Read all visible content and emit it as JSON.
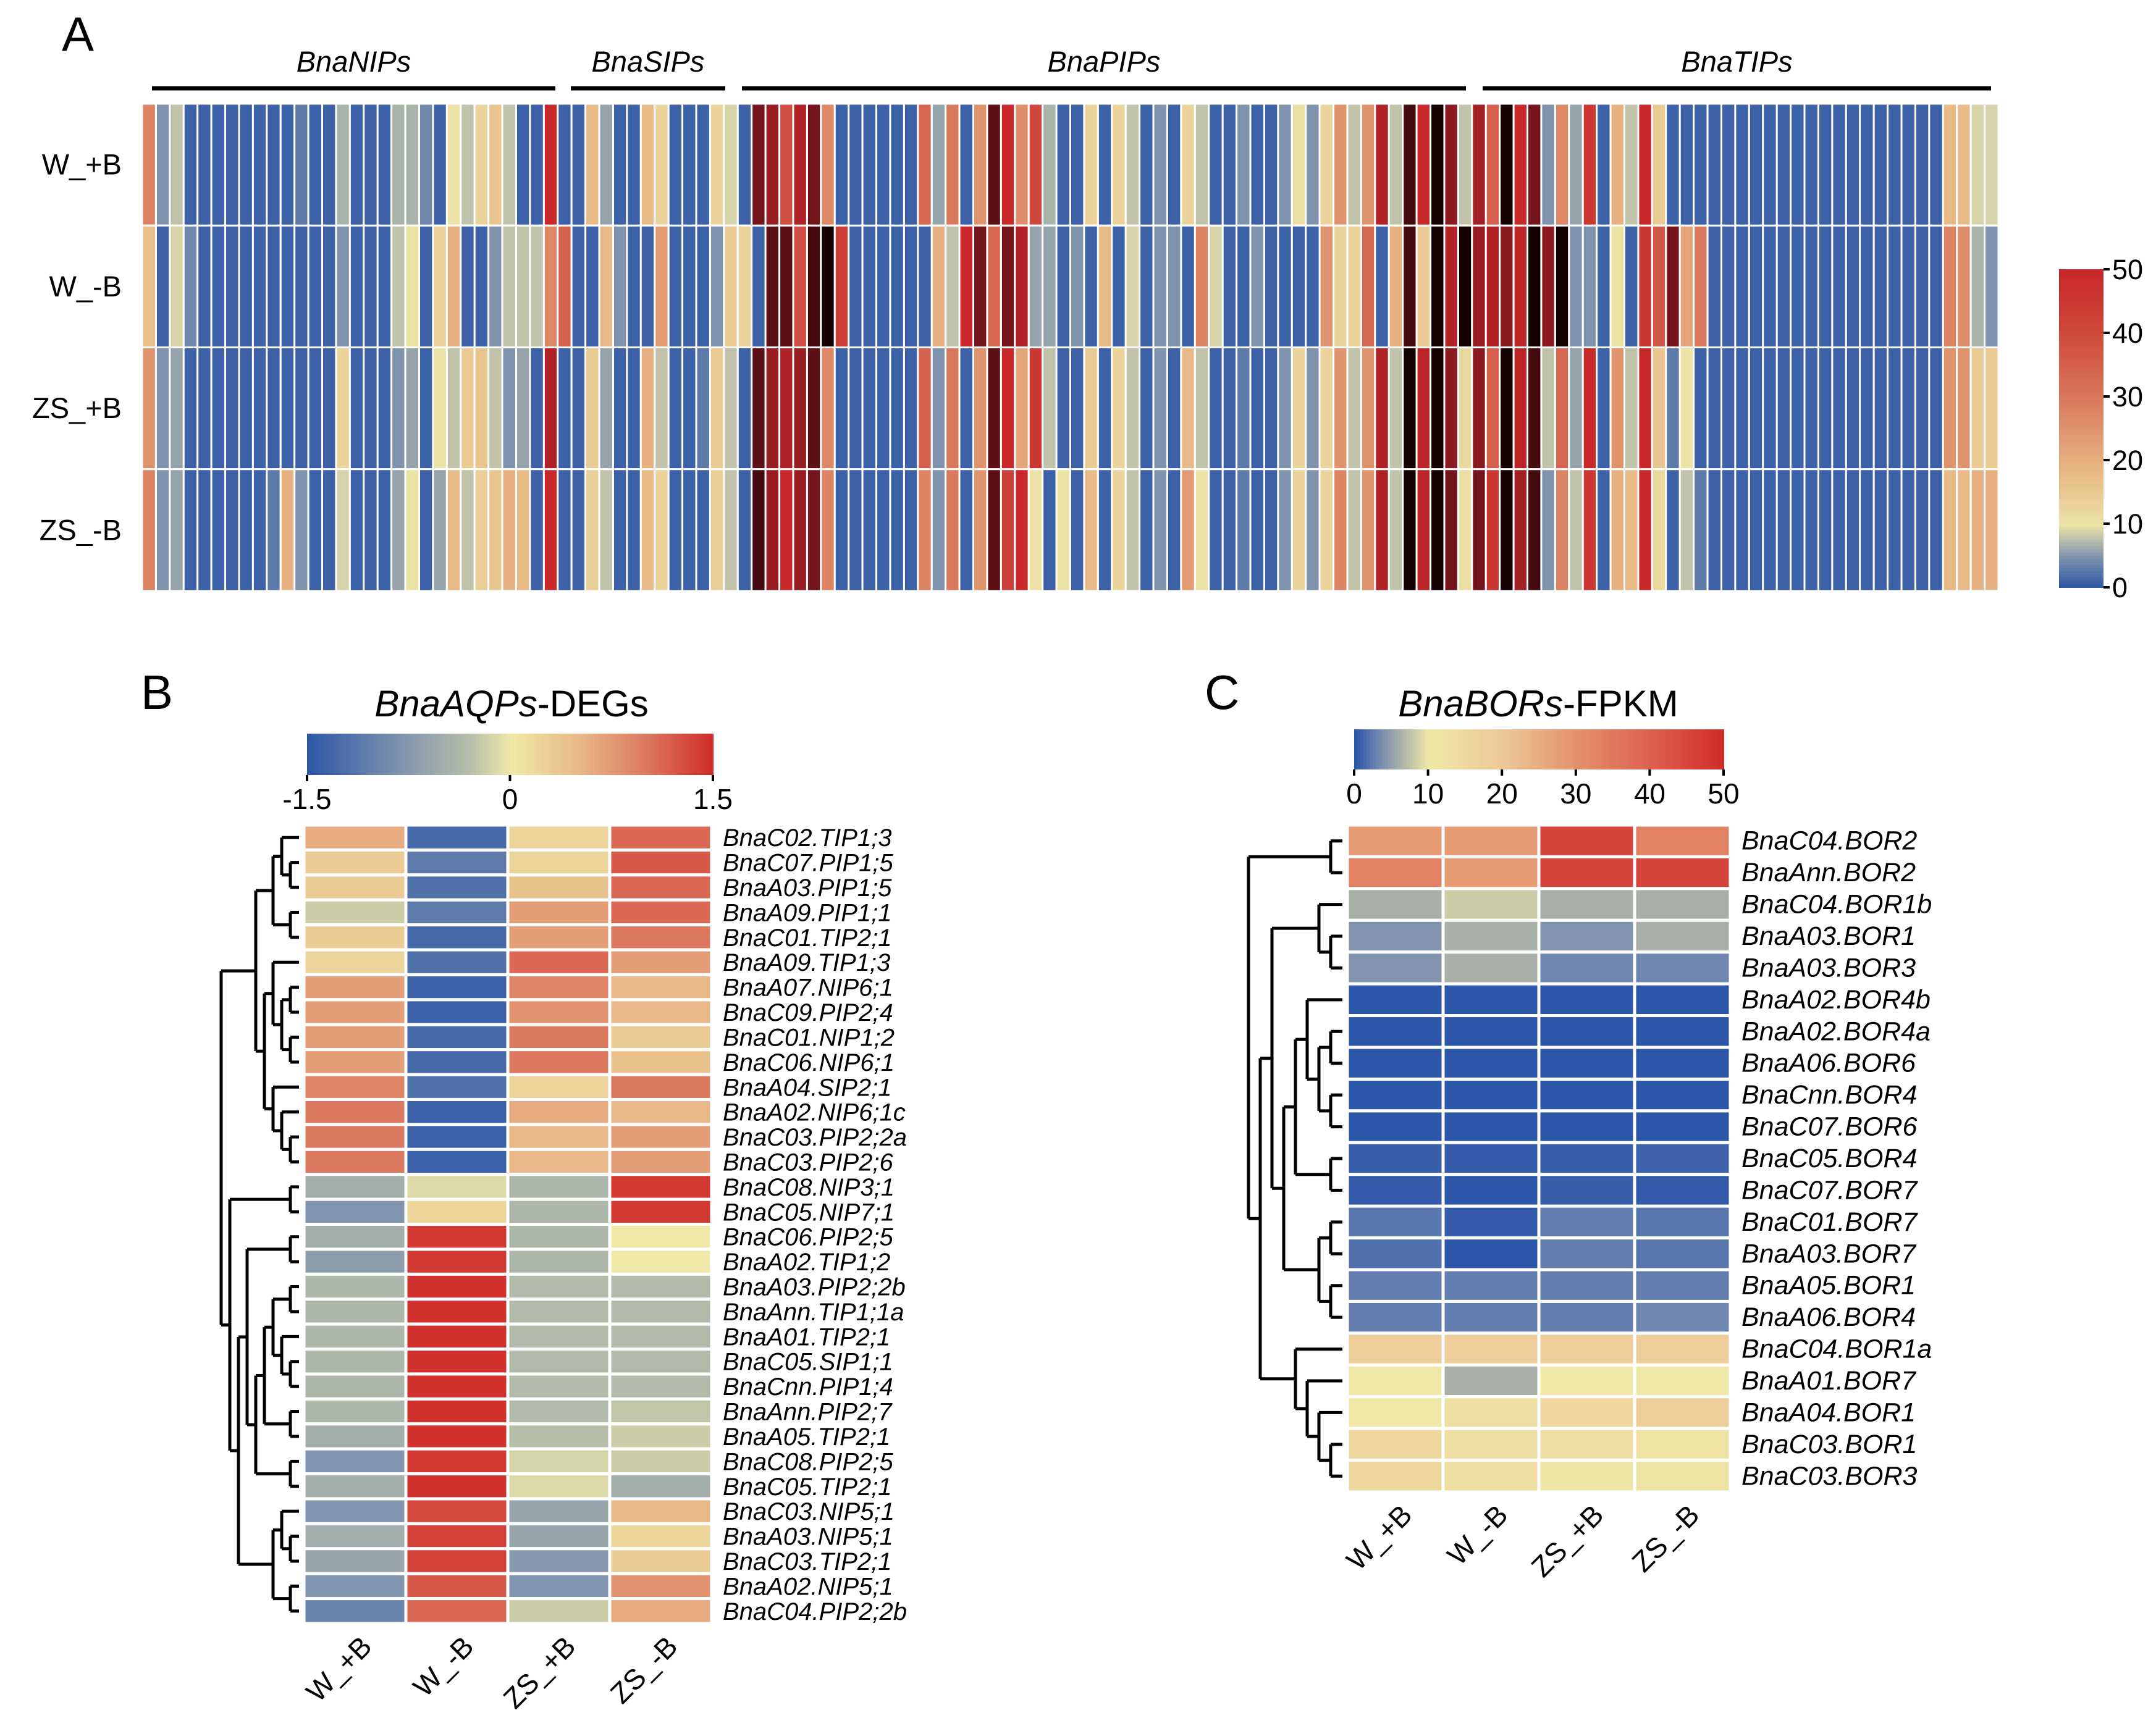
{
  "chart_data": [
    {
      "type": "heatmap",
      "panel": "A",
      "rows": [
        "W_+B",
        "W_-B",
        "ZS_+B",
        "ZS_-B"
      ],
      "groups": [
        "BnaNIPs",
        "BnaSIPs",
        "BnaPIPs",
        "BnaTIPs"
      ],
      "colorbar": {
        "ticks": [
          "50",
          "40",
          "30",
          "20",
          "10",
          "0"
        ],
        "range": [
          0,
          50
        ]
      },
      "values": [
        [
          28,
          5,
          8,
          1,
          1,
          1,
          1,
          1,
          1,
          1,
          1,
          3,
          1,
          1,
          7,
          1,
          1,
          1,
          7,
          7,
          4,
          1,
          10,
          8,
          13,
          16,
          8,
          1,
          1,
          40,
          1,
          1,
          18,
          6,
          1,
          1,
          18,
          13,
          1,
          1,
          1,
          13,
          9,
          1,
          46,
          44,
          35,
          42,
          46,
          27,
          1,
          1,
          1,
          1,
          1,
          1,
          32,
          6,
          30,
          1,
          25,
          47,
          40,
          26,
          36,
          7,
          1,
          1,
          13,
          1,
          13,
          8,
          1,
          5,
          1,
          13,
          8,
          1,
          1,
          5,
          1,
          1,
          5,
          11,
          5,
          13,
          25,
          8,
          25,
          42,
          8,
          48,
          40,
          50,
          45,
          8,
          43,
          33,
          50,
          40,
          46,
          5,
          27,
          6,
          38,
          1,
          20,
          8,
          40,
          15,
          1,
          1,
          1,
          1,
          1,
          1,
          1,
          1,
          1,
          1,
          1,
          1,
          1,
          1,
          1,
          1,
          1,
          1,
          1,
          1,
          18,
          18,
          9,
          9
        ],
        [
          17,
          1,
          9,
          4,
          1,
          1,
          1,
          1,
          1,
          1,
          1,
          1,
          1,
          1,
          5,
          1,
          1,
          1,
          8,
          10,
          1,
          13,
          20,
          1,
          1,
          5,
          8,
          8,
          8,
          27,
          33,
          1,
          1,
          18,
          5,
          1,
          1,
          24,
          1,
          1,
          1,
          5,
          15,
          13,
          1,
          47,
          47,
          35,
          48,
          50,
          37,
          1,
          1,
          1,
          1,
          1,
          1,
          20,
          8,
          40,
          46,
          32,
          46,
          42,
          6,
          6,
          1,
          5,
          1,
          18,
          1,
          9,
          1,
          5,
          5,
          1,
          28,
          9,
          1,
          1,
          5,
          1,
          1,
          1,
          1,
          25,
          13,
          13,
          32,
          1,
          20,
          48,
          15,
          50,
          42,
          50,
          44,
          42,
          45,
          41,
          50,
          45,
          50,
          5,
          5,
          1,
          10,
          1,
          38,
          34,
          46,
          22,
          30,
          1,
          1,
          1,
          1,
          1,
          1,
          1,
          1,
          1,
          1,
          1,
          1,
          1,
          1,
          1,
          1,
          1,
          28,
          26,
          7,
          5
        ],
        [
          25,
          5,
          6,
          1,
          1,
          1,
          1,
          1,
          1,
          1,
          1,
          1,
          1,
          1,
          13,
          1,
          1,
          1,
          5,
          6,
          1,
          10,
          8,
          15,
          16,
          8,
          5,
          6,
          1,
          42,
          1,
          1,
          15,
          6,
          1,
          1,
          20,
          8,
          1,
          1,
          3,
          15,
          8,
          1,
          47,
          44,
          42,
          44,
          47,
          27,
          1,
          1,
          1,
          1,
          1,
          1,
          33,
          5,
          30,
          1,
          25,
          47,
          40,
          22,
          38,
          8,
          1,
          1,
          15,
          1,
          13,
          8,
          1,
          5,
          1,
          18,
          8,
          1,
          1,
          3,
          1,
          1,
          5,
          13,
          5,
          13,
          25,
          8,
          25,
          42,
          8,
          50,
          41,
          50,
          45,
          12,
          45,
          33,
          50,
          41,
          48,
          8,
          32,
          6,
          40,
          1,
          25,
          8,
          40,
          16,
          3,
          10,
          1,
          1,
          1,
          1,
          1,
          1,
          1,
          1,
          1,
          1,
          1,
          1,
          1,
          1,
          1,
          1,
          1,
          1,
          25,
          25,
          15,
          15
        ],
        [
          28,
          5,
          6,
          1,
          1,
          1,
          1,
          1,
          1,
          3,
          20,
          5,
          1,
          1,
          9,
          1,
          1,
          1,
          6,
          10,
          1,
          6,
          18,
          8,
          14,
          16,
          20,
          18,
          1,
          40,
          1,
          1,
          14,
          8,
          1,
          1,
          18,
          13,
          1,
          1,
          1,
          14,
          8,
          1,
          48,
          44,
          40,
          44,
          46,
          28,
          1,
          1,
          1,
          1,
          1,
          1,
          28,
          5,
          30,
          1,
          25,
          47,
          37,
          40,
          10,
          1,
          10,
          1,
          18,
          1,
          13,
          8,
          1,
          5,
          1,
          24,
          10,
          1,
          1,
          3,
          1,
          1,
          5,
          13,
          5,
          13,
          28,
          8,
          25,
          42,
          8,
          50,
          41,
          50,
          46,
          11,
          46,
          38,
          50,
          43,
          48,
          5,
          28,
          8,
          38,
          1,
          20,
          18,
          40,
          12,
          1,
          8,
          3,
          1,
          1,
          1,
          1,
          1,
          1,
          1,
          1,
          1,
          1,
          1,
          1,
          1,
          1,
          1,
          1,
          1,
          18,
          18,
          20,
          20
        ]
      ]
    },
    {
      "type": "heatmap",
      "panel": "B",
      "title_italic": "BnaAQPs",
      "title_suffix": "-DEGs",
      "colorbar": {
        "ticks": [
          "-1.5",
          "0",
          "1.5"
        ],
        "range": [
          -1.5,
          1.5
        ]
      },
      "columns": [
        "W_+B",
        "W_-B",
        "ZS_+B",
        "ZS_-B"
      ],
      "rows": [
        "BnaC02.TIP1;3",
        "BnaC07.PIP1;5",
        "BnaA03.PIP1;5",
        "BnaA09.PIP1;1",
        "BnaC01.TIP2;1",
        "BnaA09.TIP1;3",
        "BnaA07.NIP6;1",
        "BnaC09.PIP2;4",
        "BnaC01.NIP1;2",
        "BnaC06.NIP6;1",
        "BnaA04.SIP2;1",
        "BnaA02.NIP6;1c",
        "BnaC03.PIP2;2a",
        "BnaC03.PIP2;6",
        "BnaC08.NIP3;1",
        "BnaC05.NIP7;1",
        "BnaC06.PIP2;5",
        "BnaA02.TIP1;2",
        "BnaA03.PIP2;2b",
        "BnaAnn.TIP1;1a",
        "BnaA01.TIP2;1",
        "BnaC05.SIP1;1",
        "BnaCnn.PIP1;4",
        "BnaAnn.PIP2;7",
        "BnaA05.TIP2;1",
        "BnaC08.PIP2;5",
        "BnaC05.TIP2;1",
        "BnaC03.NIP5;1",
        "BnaA03.NIP5;1",
        "BnaC03.TIP2;1",
        "BnaA02.NIP5;1",
        "BnaC04.PIP2;2b"
      ],
      "values": [
        [
          0.6,
          -1.3,
          0.2,
          1.1
        ],
        [
          0.3,
          -1.1,
          0.2,
          1.2
        ],
        [
          0.3,
          -1.2,
          0.4,
          1.1
        ],
        [
          -0.2,
          -1.1,
          0.7,
          1.1
        ],
        [
          0.3,
          -1.3,
          0.7,
          1.0
        ],
        [
          0.2,
          -1.2,
          1.1,
          0.7
        ],
        [
          0.7,
          -1.4,
          0.9,
          0.5
        ],
        [
          0.7,
          -1.4,
          0.8,
          0.5
        ],
        [
          0.7,
          -1.3,
          1.0,
          0.3
        ],
        [
          0.7,
          -1.3,
          1.0,
          0.4
        ],
        [
          0.9,
          -1.2,
          0.2,
          1.0
        ],
        [
          1.0,
          -1.4,
          0.6,
          0.5
        ],
        [
          1.0,
          -1.4,
          0.5,
          0.7
        ],
        [
          1.0,
          -1.4,
          0.5,
          0.7
        ],
        [
          -0.5,
          -0.1,
          -0.4,
          1.4
        ],
        [
          -0.8,
          0.2,
          -0.4,
          1.4
        ],
        [
          -0.5,
          1.4,
          -0.4,
          0.0
        ],
        [
          -0.7,
          1.4,
          -0.4,
          0.0
        ],
        [
          -0.4,
          1.45,
          -0.35,
          -0.35
        ],
        [
          -0.4,
          1.45,
          -0.35,
          -0.35
        ],
        [
          -0.4,
          1.45,
          -0.35,
          -0.35
        ],
        [
          -0.4,
          1.45,
          -0.35,
          -0.35
        ],
        [
          -0.4,
          1.45,
          -0.35,
          -0.35
        ],
        [
          -0.4,
          1.45,
          -0.35,
          -0.25
        ],
        [
          -0.5,
          1.45,
          -0.3,
          -0.2
        ],
        [
          -0.8,
          1.4,
          -0.15,
          -0.2
        ],
        [
          -0.5,
          1.45,
          -0.1,
          -0.5
        ],
        [
          -0.8,
          1.3,
          -0.6,
          0.5
        ],
        [
          -0.5,
          1.35,
          -0.6,
          0.2
        ],
        [
          -0.6,
          1.35,
          -0.75,
          0.3
        ],
        [
          -0.8,
          1.2,
          -0.8,
          0.8
        ],
        [
          -1.0,
          1.1,
          -0.2,
          0.6
        ]
      ],
      "tree": [
        [
          [
            [
              0,
              [
                1,
                2
              ]
            ],
            [
              3,
              4
            ]
          ],
          [
            [
              5,
              [
                [
                  6,
                  7
                ],
                [
                  8,
                  9
                ]
              ]
            ],
            [
              10,
              [
                11,
                [
                  12,
                  13
                ]
              ]
            ]
          ]
        ],
        [
          [
            14,
            15
          ],
          [
            [
              [
                16,
                17
              ],
              [
                [
                  [
                    [
                      18,
                      19
                    ],
                    [
                      20,
                      [
                        21,
                        22
                      ]
                    ]
                  ],
                  [
                    23,
                    24
                  ]
                ],
                [
                  25,
                  26
                ]
              ]
            ],
            [
              [
                27,
                [
                  28,
                  29
                ]
              ],
              [
                30,
                31
              ]
            ]
          ]
        ]
      ]
    },
    {
      "type": "heatmap",
      "panel": "C",
      "title_italic": "BnaBORs",
      "title_suffix": "-FPKM",
      "colorbar": {
        "ticks": [
          "0",
          "10",
          "20",
          "30",
          "40",
          "50"
        ],
        "range": [
          0,
          50
        ]
      },
      "columns": [
        "W_+B",
        "W_-B",
        "ZS_+B",
        "ZS_-B"
      ],
      "rows": [
        "BnaC04.BOR2",
        "BnaAnn.BOR2",
        "BnaC04.BOR1b",
        "BnaA03.BOR1",
        "BnaA03.BOR3",
        "BnaA02.BOR4b",
        "BnaA02.BOR4a",
        "BnaA06.BOR6",
        "BnaCnn.BOR4",
        "BnaC07.BOR6",
        "BnaC05.BOR4",
        "BnaC07.BOR7",
        "BnaC01.BOR7",
        "BnaA03.BOR7",
        "BnaA05.BOR1",
        "BnaA06.BOR4",
        "BnaC04.BOR1a",
        "BnaA01.BOR7",
        "BnaA04.BOR1",
        "BnaC03.BOR1",
        "BnaC03.BOR3"
      ],
      "values": [
        [
          28,
          28,
          45,
          33
        ],
        [
          33,
          28,
          45,
          45
        ],
        [
          6,
          8,
          6,
          6
        ],
        [
          4,
          6,
          4,
          6
        ],
        [
          4,
          6,
          3,
          3
        ],
        [
          0,
          0,
          0,
          0
        ],
        [
          0,
          0,
          0,
          0
        ],
        [
          0,
          0,
          0,
          0
        ],
        [
          0,
          0,
          0,
          0
        ],
        [
          0,
          0,
          0,
          0
        ],
        [
          0.5,
          0.3,
          0.5,
          0.8
        ],
        [
          0.3,
          0,
          0.5,
          0.3
        ],
        [
          2,
          0.3,
          2.5,
          2
        ],
        [
          1.5,
          0,
          2.5,
          2
        ],
        [
          2.5,
          2.5,
          2.5,
          2.5
        ],
        [
          2.5,
          2.5,
          2.5,
          3
        ],
        [
          18,
          18,
          18,
          18
        ],
        [
          10,
          6,
          10,
          10
        ],
        [
          10,
          13,
          15,
          18
        ],
        [
          15,
          13,
          13,
          12
        ],
        [
          15,
          13,
          11,
          12
        ]
      ],
      "tree": [
        [
          0,
          1
        ],
        [
          [
            [
              2,
              [
                3,
                4
              ]
            ],
            [
              [
                [
                  5,
                  [
                    [
                      6,
                      7
                    ],
                    [
                      8,
                      9
                    ]
                  ]
                ],
                [
                  10,
                  11
                ]
              ],
              [
                [
                  12,
                  13
                ],
                [
                  14,
                  15
                ]
              ]
            ]
          ],
          [
            16,
            [
              17,
              [
                18,
                [
                  19,
                  20
                ]
              ]
            ]
          ]
        ]
      ]
    }
  ],
  "panel_labels": {
    "a": "A",
    "b": "B",
    "c": "C"
  },
  "colors": {
    "scaleA": [
      "#2b55a4",
      "#7f93ad",
      "#ebe3a6",
      "#e6b080",
      "#d9785c",
      "#c8282a",
      "#8b1a20",
      "#150000"
    ],
    "scaleB": [
      "#2f58a8",
      "#8799ae",
      "#b7bfa8",
      "#efe8a8",
      "#e8b888",
      "#dc7860",
      "#d02a28"
    ],
    "scaleC": [
      "#2c56a8",
      "#6f86b0",
      "#a8b0a8",
      "#efe8a8",
      "#ecc898",
      "#e4906c",
      "#dc6050",
      "#d02a28"
    ]
  }
}
